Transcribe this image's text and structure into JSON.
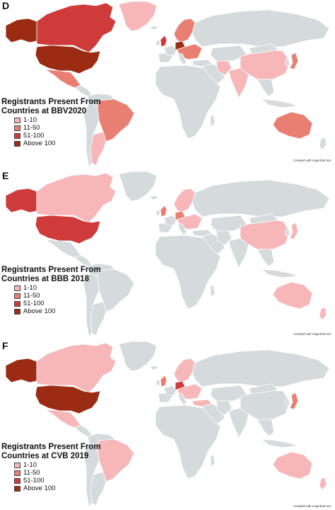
{
  "colors": {
    "ocean": "#ffffff",
    "base": "#d5dadc",
    "border": "#ffffff",
    "scale": [
      "#f7b7b9",
      "#e87f72",
      "#cf3a3a",
      "#9b2b12"
    ]
  },
  "panels": [
    {
      "letter": "D",
      "title_line1": "Registrants Present From",
      "title_line2": "Countries at BBV2020",
      "credit": "Created with mapchart.net",
      "categories": [
        {
          "country": "Canada",
          "level": 2
        },
        {
          "country": "Alaska",
          "level": 3
        },
        {
          "country": "United States",
          "level": 3
        },
        {
          "country": "Mexico",
          "level": 1
        },
        {
          "country": "Brazil",
          "level": 1
        },
        {
          "country": "Argentina",
          "level": 0
        },
        {
          "country": "Australia",
          "level": 1
        },
        {
          "country": "China",
          "level": 0
        },
        {
          "country": "Japan",
          "level": 1
        },
        {
          "country": "India",
          "level": 0
        },
        {
          "country": "Scandinavia",
          "level": 1
        },
        {
          "country": "United Kingdom",
          "level": 2
        },
        {
          "country": "Germany",
          "level": 3
        },
        {
          "country": "Europe (other)",
          "level": 1
        },
        {
          "country": "Iran",
          "level": 0
        },
        {
          "country": "Greenland",
          "level": 0
        }
      ]
    },
    {
      "letter": "E",
      "title_line1": "Registrants Present From",
      "title_line2": "Countries at BBB 2018",
      "credit": "Created with mapchart.net",
      "categories": [
        {
          "country": "Canada",
          "level": 0
        },
        {
          "country": "Alaska",
          "level": 2
        },
        {
          "country": "United States",
          "level": 2
        },
        {
          "country": "Mexico",
          "level": -1
        },
        {
          "country": "Brazil",
          "level": -1
        },
        {
          "country": "Argentina",
          "level": -1
        },
        {
          "country": "Australia",
          "level": 0
        },
        {
          "country": "China",
          "level": 0
        },
        {
          "country": "Japan",
          "level": 0
        },
        {
          "country": "India",
          "level": -1
        },
        {
          "country": "Scandinavia",
          "level": 0
        },
        {
          "country": "United Kingdom",
          "level": 1
        },
        {
          "country": "Germany",
          "level": 1
        },
        {
          "country": "Europe (other)",
          "level": 0
        },
        {
          "country": "Iran",
          "level": -1
        },
        {
          "country": "Greenland",
          "level": -1
        },
        {
          "country": "New Zealand",
          "level": 0
        }
      ]
    },
    {
      "letter": "F",
      "title_line1": "Registrants Present From",
      "title_line2": "Countries at CVB 2019",
      "credit": "Created with mapchart.net",
      "categories": [
        {
          "country": "Canada",
          "level": 0
        },
        {
          "country": "Alaska",
          "level": 3
        },
        {
          "country": "United States",
          "level": 3
        },
        {
          "country": "Mexico",
          "level": 0
        },
        {
          "country": "Brazil",
          "level": 0
        },
        {
          "country": "Argentina",
          "level": -1
        },
        {
          "country": "Australia",
          "level": 0
        },
        {
          "country": "China",
          "level": -1
        },
        {
          "country": "Japan",
          "level": 1
        },
        {
          "country": "India",
          "level": -1
        },
        {
          "country": "Scandinavia",
          "level": 0
        },
        {
          "country": "United Kingdom",
          "level": 1
        },
        {
          "country": "Germany",
          "level": 2
        },
        {
          "country": "Europe (other)",
          "level": 0
        },
        {
          "country": "Iran",
          "level": -1
        },
        {
          "country": "Greenland",
          "level": -1
        },
        {
          "country": "Turkey",
          "level": 0
        },
        {
          "country": "New Zealand",
          "level": 0
        }
      ]
    }
  ],
  "legend": [
    "1-10",
    "11-50",
    "51-100",
    "Above 100"
  ]
}
